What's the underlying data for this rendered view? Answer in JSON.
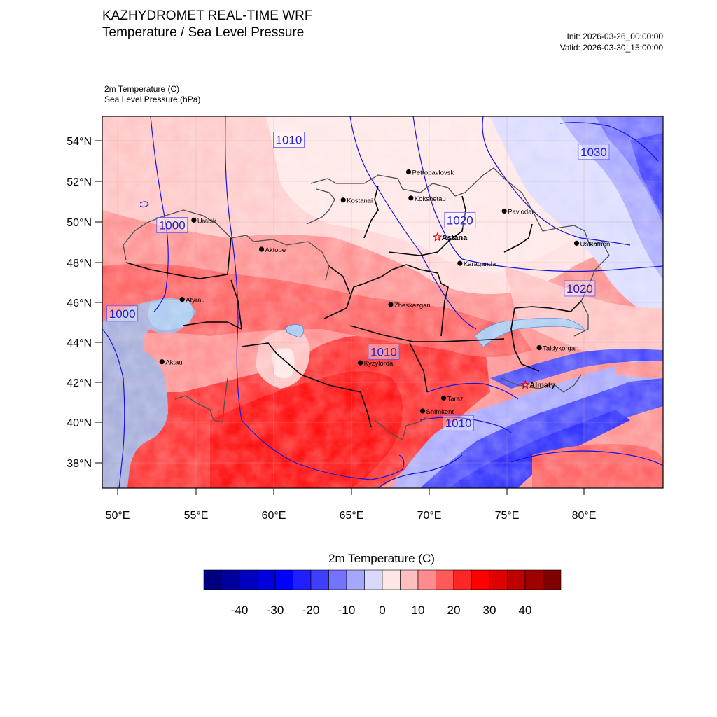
{
  "header": {
    "title": "KAZHYDROMET REAL-TIME WRF",
    "subtitle": "Temperature / Sea Level Pressure",
    "init": "Init: 2026-03-26_00:00:00",
    "valid": "Valid: 2026-03-30_15:00:00"
  },
  "fields": {
    "temperature": "2m Temperature   (C)",
    "pressure": "Sea Level Pressure   (hPa)"
  },
  "axes": {
    "lat_labels": [
      "54°N",
      "52°N",
      "50°N",
      "48°N",
      "46°N",
      "44°N",
      "42°N",
      "40°N",
      "38°N"
    ],
    "lon_labels": [
      "50°E",
      "55°E",
      "60°E",
      "65°E",
      "70°E",
      "75°E",
      "80°E"
    ]
  },
  "cities": [
    {
      "name": "Petropavlovsk",
      "lon": 68.7,
      "lat": 52.45,
      "capital": false
    },
    {
      "name": "Kostanai",
      "lon": 64.5,
      "lat": 51.05,
      "capital": false
    },
    {
      "name": "Kokshetau",
      "lon": 68.85,
      "lat": 51.15,
      "capital": false
    },
    {
      "name": "Pavlodar",
      "lon": 74.85,
      "lat": 50.5,
      "capital": false
    },
    {
      "name": "Uralsk",
      "lon": 54.9,
      "lat": 50.05,
      "capital": false
    },
    {
      "name": "Aktobe",
      "lon": 59.25,
      "lat": 48.6,
      "capital": false
    },
    {
      "name": "Astana",
      "lon": 70.55,
      "lat": 49.2,
      "capital": true
    },
    {
      "name": "Ustkamen",
      "lon": 79.5,
      "lat": 48.9,
      "capital": false
    },
    {
      "name": "Karaganda",
      "lon": 72.0,
      "lat": 47.9,
      "capital": false
    },
    {
      "name": "Atyrau",
      "lon": 54.15,
      "lat": 46.1,
      "capital": false
    },
    {
      "name": "Zheskazgan",
      "lon": 67.55,
      "lat": 45.85,
      "capital": false
    },
    {
      "name": "Taldykorgan",
      "lon": 77.1,
      "lat": 43.7,
      "capital": false
    },
    {
      "name": "Aktau",
      "lon": 52.85,
      "lat": 43.0,
      "capital": false
    },
    {
      "name": "Kyzylorda",
      "lon": 65.6,
      "lat": 42.95,
      "capital": false
    },
    {
      "name": "Almaty",
      "lon": 76.2,
      "lat": 41.85,
      "capital": true
    },
    {
      "name": "Taraz",
      "lon": 70.95,
      "lat": 41.2,
      "capital": false
    },
    {
      "name": "Shimkent",
      "lon": 69.6,
      "lat": 40.55,
      "capital": false
    }
  ],
  "isobar_labels": [
    {
      "text": "1010",
      "lon": 61.0,
      "lat": 54.05
    },
    {
      "text": "1030",
      "lon": 80.6,
      "lat": 53.45
    },
    {
      "text": "1000",
      "lon": 53.5,
      "lat": 49.8
    },
    {
      "text": "1020",
      "lon": 72.0,
      "lat": 50.05
    },
    {
      "text": "1020",
      "lon": 79.7,
      "lat": 46.65
    },
    {
      "text": "1000",
      "lon": 50.3,
      "lat": 45.4
    },
    {
      "text": "1010",
      "lon": 67.1,
      "lat": 43.5
    },
    {
      "text": "1010",
      "lon": 71.9,
      "lat": 39.95
    }
  ],
  "colorbar": {
    "title": "2m Temperature  (C)",
    "colors": [
      "#00007f",
      "#00009f",
      "#0000bf",
      "#0000df",
      "#0000ff",
      "#1f1fff",
      "#3f3fff",
      "#7373ff",
      "#a6a6ff",
      "#d9d9ff",
      "#ffe6e6",
      "#ffbfbf",
      "#ff8c8c",
      "#ff5959",
      "#ff2626",
      "#ff0000",
      "#df0000",
      "#bf0000",
      "#9f0000",
      "#7f0000"
    ],
    "tick_labels": [
      "-40",
      "-30",
      "-20",
      "-10",
      "0",
      "10",
      "20",
      "30",
      "40"
    ]
  },
  "chart_data": {
    "type": "heatmap",
    "variable": "2m Temperature (C) with Sea Level Pressure (hPa) contours",
    "lon_range": [
      49,
      85
    ],
    "lat_range": [
      36.5,
      55.2
    ],
    "isobar_values_hpa": [
      1000,
      1010,
      1020,
      1030
    ]
  }
}
